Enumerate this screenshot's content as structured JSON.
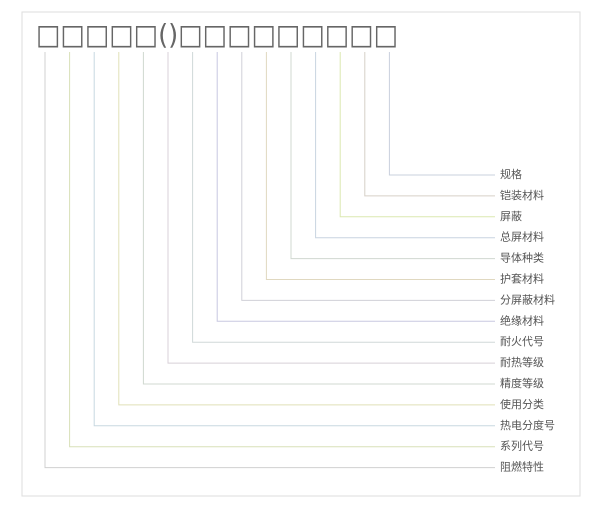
{
  "header": {
    "code": "□□□□□()□□□□□□□□□"
  },
  "labels": [
    "规格",
    "铠装材料",
    "屏蔽",
    "总屏材料",
    "导体种类",
    "护套材料",
    "分屏蔽材料",
    "绝缘材料",
    "耐火代号",
    "耐热等级",
    "精度等级",
    "使用分类",
    "热电分度号",
    "系列代号",
    "阻燃特性"
  ]
}
